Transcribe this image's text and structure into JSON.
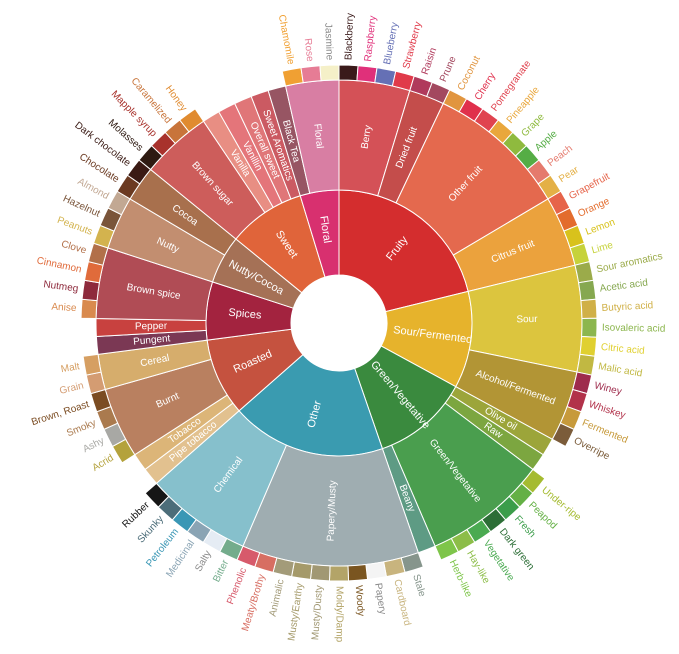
{
  "chart_data": {
    "type": "sunburst",
    "nodes": [
      {
        "name": "Fruity",
        "color": "#d42d2e",
        "children": [
          {
            "name": "Berry",
            "color": "#d45157",
            "children": [
              {
                "name": "Blackberry",
                "color": "#3a1a1a",
                "value": 1
              },
              {
                "name": "Raspberry",
                "color": "#e0307a",
                "value": 1
              },
              {
                "name": "Blueberry",
                "color": "#6570b5",
                "value": 1
              },
              {
                "name": "Strawberry",
                "color": "#e03a4a",
                "value": 1
              }
            ]
          },
          {
            "name": "Dried fruit",
            "color": "#c44d4b",
            "children": [
              {
                "name": "Raisin",
                "color": "#b03a5c",
                "value": 1
              },
              {
                "name": "Prune",
                "color": "#a3485f",
                "value": 1
              }
            ]
          },
          {
            "name": "Other fruit",
            "color": "#e4694e",
            "children": [
              {
                "name": "Coconut",
                "color": "#e1953f",
                "value": 1
              },
              {
                "name": "Cherry",
                "color": "#e0304c",
                "value": 1
              },
              {
                "name": "Pomegranate",
                "color": "#e0434f",
                "value": 1
              },
              {
                "name": "Pineapple",
                "color": "#e9a73c",
                "value": 1
              },
              {
                "name": "Grape",
                "color": "#8fba3e",
                "value": 1
              },
              {
                "name": "Apple",
                "color": "#55ad45",
                "value": 1
              },
              {
                "name": "Peach",
                "color": "#e57a6d",
                "value": 1
              },
              {
                "name": "Pear",
                "color": "#e4b046",
                "value": 1
              }
            ]
          },
          {
            "name": "Citrus fruit",
            "color": "#eba23d",
            "children": [
              {
                "name": "Grapefruit",
                "color": "#e6644a",
                "value": 1
              },
              {
                "name": "Orange",
                "color": "#e36c2d",
                "value": 1
              },
              {
                "name": "Lemon",
                "color": "#d8c21c",
                "value": 1
              },
              {
                "name": "Lime",
                "color": "#c6d23a",
                "value": 1
              }
            ]
          }
        ]
      },
      {
        "name": "Sour/Fermented",
        "color": "#e6b32c",
        "children": [
          {
            "name": "Sour",
            "color": "#dcc53e",
            "children": [
              {
                "name": "Sour aromatics",
                "color": "#9bab4a",
                "value": 1
              },
              {
                "name": "Acetic acid",
                "color": "#86a850",
                "value": 1
              },
              {
                "name": "Butyric acid",
                "color": "#d0b047",
                "value": 1
              },
              {
                "name": "Isovaleric acid",
                "color": "#8cb64e",
                "value": 1
              },
              {
                "name": "Citric acid",
                "color": "#e0d030",
                "value": 1
              },
              {
                "name": "Malic acid",
                "color": "#c1b842",
                "value": 1
              }
            ]
          },
          {
            "name": "Alcohol/Fermented",
            "color": "#b29535",
            "children": [
              {
                "name": "Winey",
                "color": "#9e2b4c",
                "value": 1
              },
              {
                "name": "Whiskey",
                "color": "#b2324a",
                "value": 1
              },
              {
                "name": "Fermented",
                "color": "#c79a3b",
                "value": 1
              },
              {
                "name": "Overripe",
                "color": "#7b5c3a",
                "value": 1
              }
            ]
          }
        ]
      },
      {
        "name": "Green/Vegetative",
        "color": "#3a8a3e",
        "children": [
          {
            "name": "Olive oil",
            "color": "#9ca53a",
            "value": 1
          },
          {
            "name": "Raw",
            "color": "#7ca640",
            "value": 1
          },
          {
            "name": "Green/Vegetative",
            "color": "#4a9e4e",
            "children": [
              {
                "name": "Under-ripe",
                "color": "#a5bb30",
                "value": 1
              },
              {
                "name": "Peapod",
                "color": "#64b045",
                "value": 1
              },
              {
                "name": "Fresh",
                "color": "#3b9d4a",
                "value": 1
              },
              {
                "name": "Dark green",
                "color": "#2c6e36",
                "value": 1
              },
              {
                "name": "Vegetative",
                "color": "#4aaa51",
                "value": 1
              },
              {
                "name": "Hay-like",
                "color": "#8cbd48",
                "value": 1
              },
              {
                "name": "Herb-like",
                "color": "#7ec54a",
                "value": 1
              }
            ]
          },
          {
            "name": "Beany",
            "color": "#5e9b84",
            "value": 1
          }
        ]
      },
      {
        "name": "Other",
        "color": "#3a9bb0",
        "children": [
          {
            "name": "Papery/Musty",
            "color": "#9fadb1",
            "children": [
              {
                "name": "Stale",
                "color": "#86958c",
                "value": 1
              },
              {
                "name": "Cardboard",
                "color": "#c8b47e",
                "value": 1
              },
              {
                "name": "Papery",
                "color": "#f4f4f4",
                "value": 1
              },
              {
                "name": "Woody",
                "color": "#7a5520",
                "value": 1
              },
              {
                "name": "Moldy/Damp",
                "color": "#b3a468",
                "value": 1
              },
              {
                "name": "Musty/Dusty",
                "color": "#a19873",
                "value": 1
              },
              {
                "name": "Musty/Earthy",
                "color": "#a59a6a",
                "value": 1
              },
              {
                "name": "Animalic",
                "color": "#a39b79",
                "value": 1
              },
              {
                "name": "Meaty/Brothy",
                "color": "#d76e62",
                "value": 1
              },
              {
                "name": "Phenolic",
                "color": "#d75a6b",
                "value": 1
              }
            ]
          },
          {
            "name": "Chemical",
            "color": "#86c0cc",
            "children": [
              {
                "name": "Bitter",
                "color": "#74ac8c",
                "value": 1
              },
              {
                "name": "Salty",
                "color": "#e5ecf4",
                "value": 1
              },
              {
                "name": "Medicinal",
                "color": "#8aa4b4",
                "value": 1
              },
              {
                "name": "Petroleum",
                "color": "#3a97b5",
                "value": 1
              },
              {
                "name": "Skunky",
                "color": "#4c6d79",
                "value": 1
              },
              {
                "name": "Rubber",
                "color": "#161616",
                "value": 1
              }
            ]
          }
        ]
      },
      {
        "name": "Roasted",
        "color": "#c5523f",
        "children": [
          {
            "name": "Pipe tobacco",
            "color": "#e2c18f",
            "value": 1
          },
          {
            "name": "Tobacco",
            "color": "#dcb578",
            "value": 1
          },
          {
            "name": "Burnt",
            "color": "#b98060",
            "children": [
              {
                "name": "Acrid",
                "color": "#b4a23c",
                "value": 1
              },
              {
                "name": "Ashy",
                "color": "#a8a8a4",
                "value": 1
              },
              {
                "name": "Smoky",
                "color": "#aa7a4e",
                "value": 1
              },
              {
                "name": "Brown, Roast",
                "color": "#7b4c22",
                "value": 1
              }
            ]
          },
          {
            "name": "Cereal",
            "color": "#d6ad6c",
            "children": [
              {
                "name": "Grain",
                "color": "#d49c72",
                "value": 1
              },
              {
                "name": "Malt",
                "color": "#d69f62",
                "value": 1
              }
            ]
          }
        ]
      },
      {
        "name": "Spices",
        "color": "#a3233f",
        "children": [
          {
            "name": "Pungent",
            "color": "#7b3854",
            "value": 1
          },
          {
            "name": "Pepper",
            "color": "#c8413f",
            "value": 1
          },
          {
            "name": "Brown spice",
            "color": "#b04c55",
            "children": [
              {
                "name": "Anise",
                "color": "#d98a4e",
                "value": 1
              },
              {
                "name": "Nutmeg",
                "color": "#8e2a3c",
                "value": 1
              },
              {
                "name": "Cinnamon",
                "color": "#e06b3b",
                "value": 1
              },
              {
                "name": "Clove",
                "color": "#b2704a",
                "value": 1
              }
            ]
          }
        ]
      },
      {
        "name": "Nutty/Cocoa",
        "color": "#a57156",
        "children": [
          {
            "name": "Nutty",
            "color": "#c28e70",
            "children": [
              {
                "name": "Peanuts",
                "color": "#d3b34e",
                "value": 1
              },
              {
                "name": "Hazelnut",
                "color": "#7a553a",
                "value": 1
              },
              {
                "name": "Almond",
                "color": "#c2a893",
                "value": 1
              }
            ]
          },
          {
            "name": "Cocoa",
            "color": "#a8704d",
            "children": [
              {
                "name": "Chocolate",
                "color": "#6b3a22",
                "value": 1
              },
              {
                "name": "Dark chocolate",
                "color": "#3a1a14",
                "value": 1
              }
            ]
          }
        ]
      },
      {
        "name": "Sweet",
        "color": "#e0643a",
        "children": [
          {
            "name": "Brown sugar",
            "color": "#cd5d5b",
            "children": [
              {
                "name": "Molasses",
                "color": "#2e1a12",
                "value": 1
              },
              {
                "name": "Mapple syrup",
                "color": "#a8322c",
                "value": 1
              },
              {
                "name": "Caramelized",
                "color": "#c8743a",
                "value": 1
              },
              {
                "name": "Honey",
                "color": "#e08b30",
                "value": 1
              }
            ]
          },
          {
            "name": "Vanilla",
            "color": "#e88e83",
            "value": 1
          },
          {
            "name": "Vanillin",
            "color": "#e4757a",
            "value": 1
          },
          {
            "name": "Overall sweet",
            "color": "#e07678",
            "value": 1
          },
          {
            "name": "Sweet Aromatics",
            "color": "#cb5a62",
            "value": 1
          }
        ]
      },
      {
        "name": "Floral",
        "color": "#d8306f",
        "children": [
          {
            "name": "Black Tea",
            "color": "#975563",
            "value": 1
          },
          {
            "name": "Floral",
            "color": "#d87ea3",
            "children": [
              {
                "name": "Chamomile",
                "color": "#f0a033",
                "value": 1
              },
              {
                "name": "Rose",
                "color": "#e67c95",
                "value": 1
              },
              {
                "name": "Jasmine",
                "color": "#f5f0c8",
                "value": 1
              }
            ]
          }
        ]
      }
    ]
  }
}
